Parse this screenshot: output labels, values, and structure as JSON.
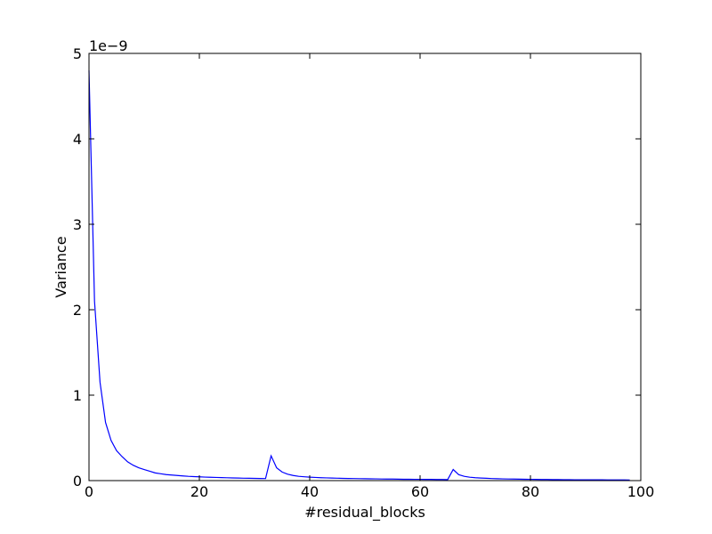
{
  "chart_data": {
    "type": "line",
    "xlabel": "#residual_blocks",
    "ylabel": "Variance",
    "offset_text": "1e−9",
    "x": [
      0,
      1,
      2,
      3,
      4,
      5,
      6,
      7,
      8,
      9,
      10,
      11,
      12,
      13,
      14,
      15,
      16,
      17,
      18,
      19,
      20,
      21,
      22,
      23,
      24,
      25,
      26,
      27,
      28,
      29,
      30,
      31,
      32,
      33,
      34,
      35,
      36,
      37,
      38,
      39,
      40,
      41,
      42,
      43,
      44,
      45,
      46,
      47,
      48,
      49,
      50,
      51,
      52,
      53,
      54,
      55,
      56,
      57,
      58,
      59,
      60,
      61,
      62,
      63,
      64,
      65,
      66,
      67,
      68,
      69,
      70,
      71,
      72,
      73,
      74,
      75,
      76,
      77,
      78,
      79,
      80,
      81,
      82,
      83,
      84,
      85,
      86,
      87,
      88,
      89,
      90,
      91,
      92,
      93,
      94,
      95,
      96,
      97,
      98
    ],
    "series": [
      {
        "color": "#0000ff",
        "values": [
          4.8,
          2.1,
          1.15,
          0.68,
          0.47,
          0.35,
          0.28,
          0.22,
          0.18,
          0.15,
          0.13,
          0.11,
          0.09,
          0.08,
          0.07,
          0.065,
          0.06,
          0.055,
          0.05,
          0.047,
          0.044,
          0.041,
          0.039,
          0.037,
          0.035,
          0.033,
          0.031,
          0.03,
          0.028,
          0.027,
          0.026,
          0.025,
          0.024,
          0.29,
          0.15,
          0.1,
          0.075,
          0.06,
          0.05,
          0.045,
          0.04,
          0.037,
          0.034,
          0.032,
          0.03,
          0.028,
          0.026,
          0.025,
          0.024,
          0.023,
          0.022,
          0.021,
          0.02,
          0.019,
          0.018,
          0.018,
          0.017,
          0.016,
          0.016,
          0.015,
          0.015,
          0.014,
          0.014,
          0.013,
          0.013,
          0.012,
          0.13,
          0.07,
          0.05,
          0.04,
          0.034,
          0.03,
          0.027,
          0.024,
          0.022,
          0.02,
          0.019,
          0.018,
          0.017,
          0.016,
          0.015,
          0.014,
          0.013,
          0.013,
          0.012,
          0.012,
          0.011,
          0.011,
          0.01,
          0.01,
          0.01,
          0.009,
          0.009,
          0.009,
          0.008,
          0.008,
          0.008,
          0.008,
          0.007
        ]
      }
    ],
    "xlim": [
      0,
      100
    ],
    "xticks": [
      0,
      20,
      40,
      60,
      80,
      100
    ],
    "ylim": [
      0,
      5
    ],
    "yticks": [
      0,
      1,
      2,
      3,
      4,
      5
    ],
    "grid": false
  }
}
